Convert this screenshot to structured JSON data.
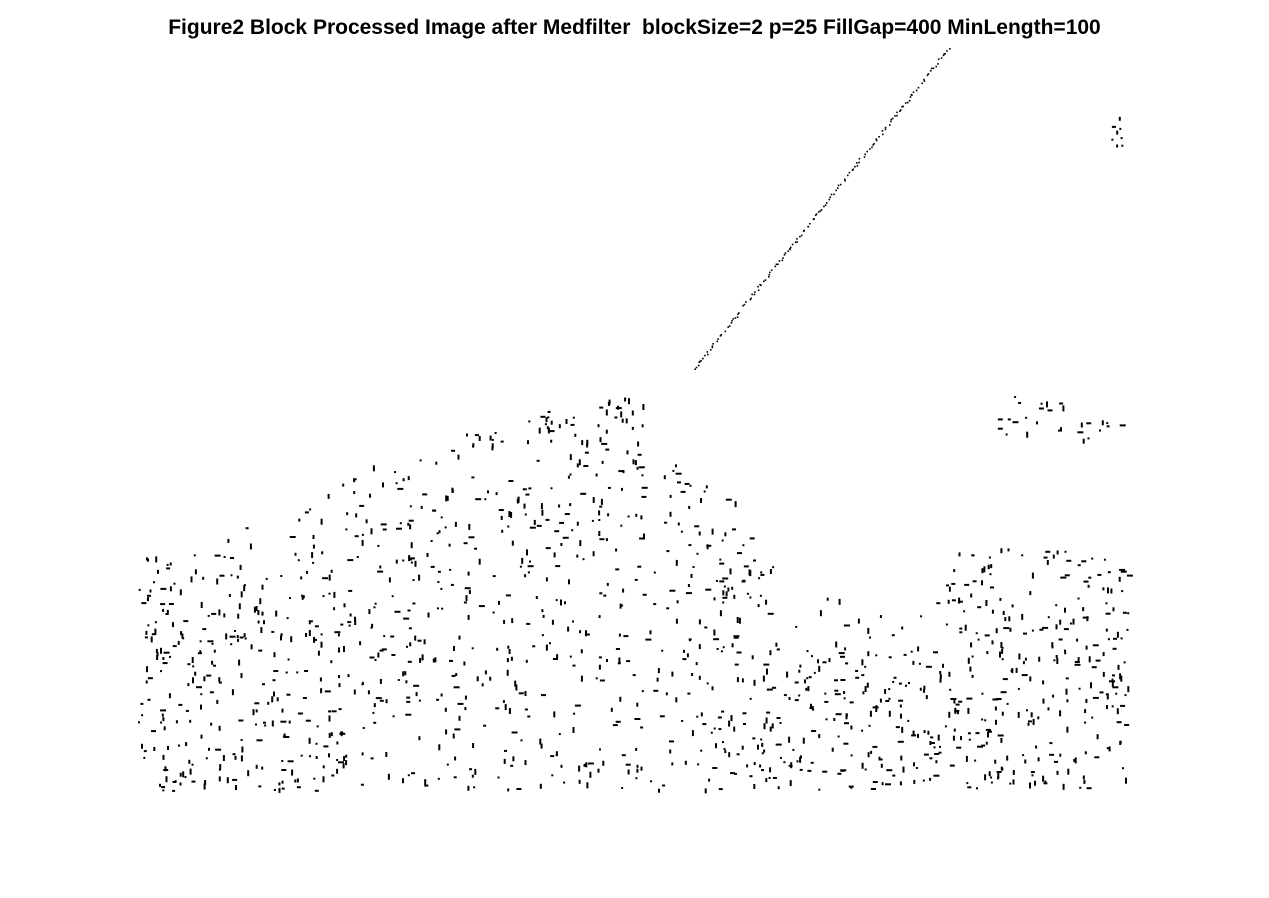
{
  "figure": {
    "title": "Figure2 Block Processed Image after Medfilter  blockSize=2 p=25 FillGap=400 MinLength=100"
  },
  "colors": {
    "background": "#ffffff",
    "ink": "#000000"
  }
}
